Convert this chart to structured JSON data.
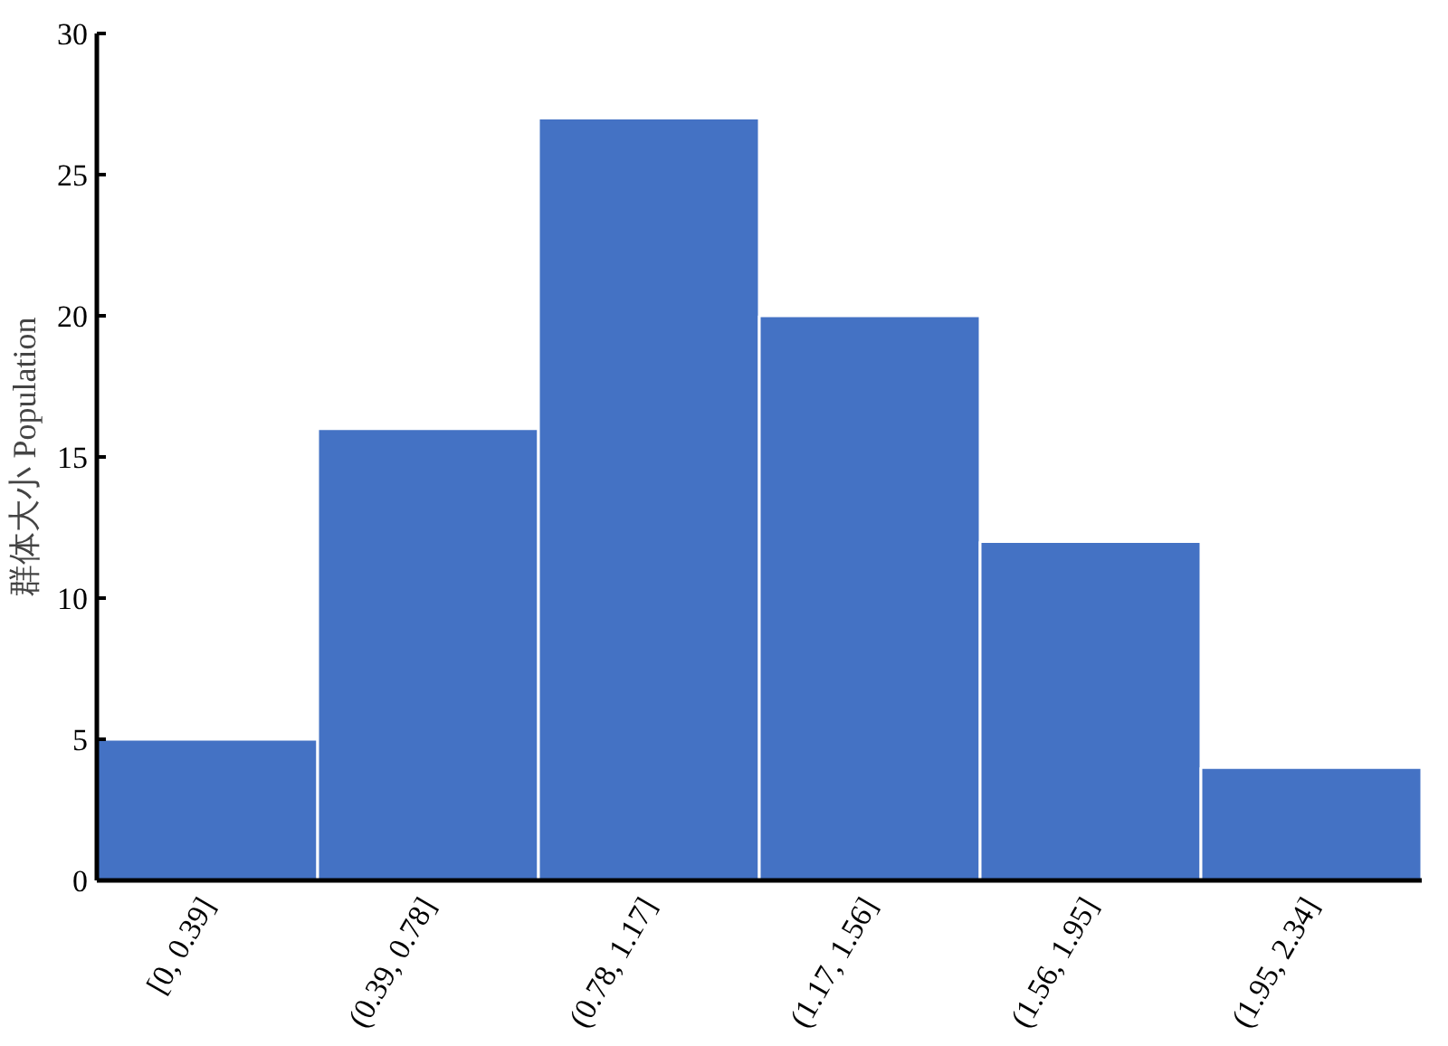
{
  "chart_data": {
    "type": "bar",
    "ylabel": "群体大小 Population",
    "categories": [
      "[0, 0.39]",
      "(0.39, 0.78]",
      "(0.78, 1.17]",
      "(1.17, 1.56]",
      "(1.56, 1.95]",
      "(1.95, 2.34]"
    ],
    "values": [
      5,
      16,
      27,
      20,
      12,
      4
    ],
    "color": "#4472c4",
    "ylim": [
      0,
      30
    ],
    "yticks": [
      0,
      5,
      10,
      15,
      20,
      25,
      30
    ]
  }
}
